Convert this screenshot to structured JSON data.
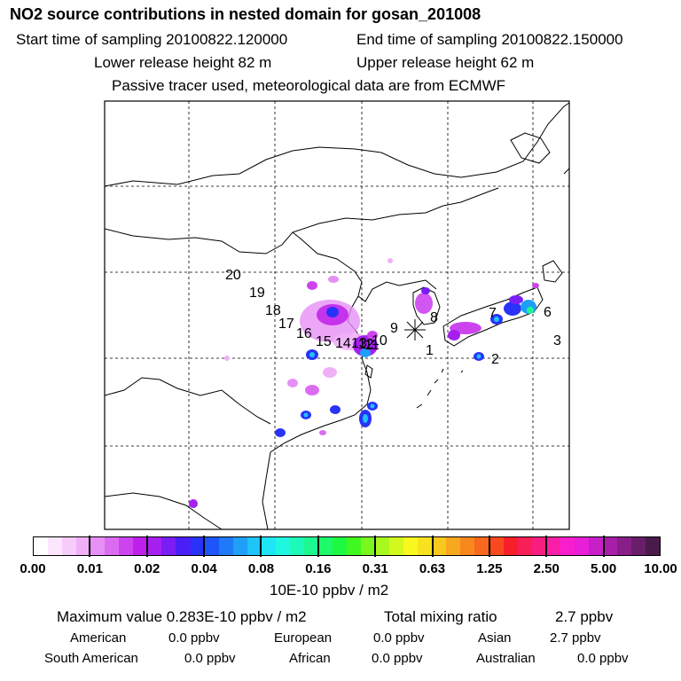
{
  "title": "NO2 source contributions in nested domain for gosan_201008",
  "header": {
    "start_time": "Start time of sampling 20100822.120000",
    "end_time": "End time of sampling 20100822.150000",
    "lower_release": "Lower release height   82 m",
    "upper_release": "Upper release height   62 m",
    "tracer_note": "Passive tracer used, meteorological data are from ECMWF"
  },
  "map": {
    "receptor_labels": [
      "1",
      "2",
      "3",
      "6",
      "7",
      "8",
      "9",
      "10",
      "11",
      "12",
      "13",
      "14",
      "15",
      "16",
      "17",
      "18",
      "19",
      "20"
    ]
  },
  "colorbar": {
    "colors": [
      "#ffffff",
      "#fbe6fd",
      "#f6ccfb",
      "#f0b0f8",
      "#e690f5",
      "#db6cf2",
      "#cd44ef",
      "#bf1fea",
      "#a61ff0",
      "#7a1ef5",
      "#4b1ef7",
      "#2a32f8",
      "#1e55f8",
      "#1e7af8",
      "#1e9ff8",
      "#1ec3f8",
      "#1ee6f8",
      "#1ef8e0",
      "#1ef8b8",
      "#1ef890",
      "#1ef869",
      "#1ef840",
      "#40f81e",
      "#78f81e",
      "#a8f81e",
      "#d2f81e",
      "#f8f81e",
      "#f8e11e",
      "#f8c81e",
      "#f8a81e",
      "#f8881e",
      "#f8681e",
      "#f84a1e",
      "#f81e2a",
      "#f81e58",
      "#f81e80",
      "#f81ea8",
      "#f81ed0",
      "#e81ed8",
      "#c81ec8",
      "#a81ea8",
      "#881e88",
      "#681e68",
      "#4a1a4a"
    ],
    "tick_labels": [
      "0.00",
      "0.01",
      "0.02",
      "0.04",
      "0.08",
      "0.16",
      "0.31",
      "0.63",
      "1.25",
      "2.50",
      "5.00",
      "10.00"
    ],
    "unit": "10E-10 ppbv / m2"
  },
  "summary": {
    "max_value": "Maximum value  0.283E-10 ppbv / m2",
    "total_mixing_ratio_label": "Total mixing ratio",
    "total_mixing_ratio_value": "2.7 ppbv",
    "rows": [
      {
        "label": "American",
        "value": "0.0 ppbv"
      },
      {
        "label": "European",
        "value": "0.0 ppbv"
      },
      {
        "label": "Asian",
        "value": "2.7 ppbv"
      },
      {
        "label": "South American",
        "value": "0.0 ppbv"
      },
      {
        "label": "African",
        "value": "0.0 ppbv"
      },
      {
        "label": "Australian",
        "value": "0.0 ppbv"
      }
    ]
  }
}
